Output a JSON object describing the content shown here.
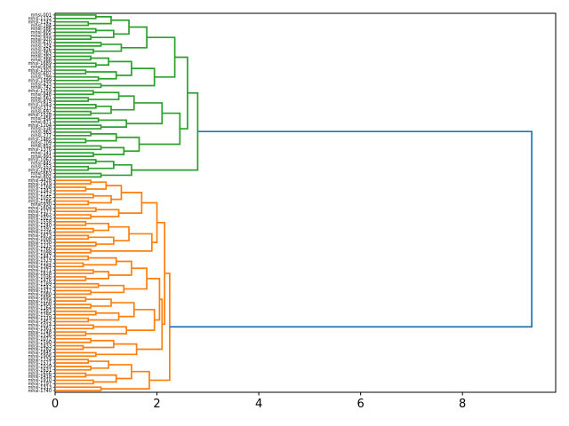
{
  "figure": {
    "background": "#ffffff"
  },
  "chart_data": {
    "type": "dendrogram",
    "orientation": "right",
    "title": "",
    "xlabel": "",
    "ylabel": "",
    "xlim": [
      0,
      9.83
    ],
    "xticks": [
      "0",
      "2",
      "4",
      "6",
      "8"
    ],
    "grid": false,
    "legend": "none",
    "root_height": 9.36,
    "color_threshold": 6.55,
    "colors": {
      "above_threshold": "#1f77b4",
      "cluster_top": "#2ca02c",
      "cluster_bottom": "#ff7f0e",
      "axis": "#000000",
      "label": "#000000"
    },
    "clusters": [
      {
        "name": "top-green",
        "color": "#2ca02c",
        "start": 0,
        "count": 48,
        "root_height": 2.8
      },
      {
        "name": "bottom-orange",
        "color": "#ff7f0e",
        "start": 48,
        "count": 62,
        "root_height": 2.25
      }
    ],
    "leaves": [
      "mhsl-001",
      "mhsl-1132",
      "mhsl-1142",
      "mhsl-184",
      "mhsl-586",
      "mhsl-605",
      "mhsl-655",
      "mhsl-920",
      "mhsl-610",
      "mhsl-324",
      "mhsl-926",
      "mhsl-363",
      "mhsl-383",
      "mhsl-368",
      "mhsl-1689",
      "mhsl-604",
      "mhsl-1302",
      "mhsl-607",
      "mhsl-199",
      "mhsl-1499",
      "mhsl-433",
      "mhsl-742",
      "mhsl-1259",
      "mhsl-948",
      "mhsl-561",
      "mhsl-879",
      "mhsl-1043",
      "mhsl-317",
      "mhsl-692",
      "mhsl-1528",
      "mhsl-456",
      "mhsl-871",
      "mhsl-1204",
      "mhsl-538",
      "mhsl-963",
      "mhsl-277",
      "mhsl-1485",
      "mhsl-709",
      "mhsl-852",
      "mhsl-1376",
      "mhsl-141",
      "mhsl-991",
      "mhsl-1067",
      "mhsl-845",
      "mhsl-553",
      "mhsl-1820",
      "mhsl-663",
      "mhsl-802",
      "mhsl-4428",
      "mhsl-1419",
      "mhsl-1168",
      "mhsl-1343",
      "mhsl-1712",
      "mhsl-1055",
      "mhsl-1286",
      "mhsl-930",
      "mhsl-1604",
      "mhsl-1177",
      "mhsl-1462",
      "mhsl-1023",
      "mhsl-1558",
      "mhsl-1240",
      "mhsl-1391",
      "mhsl-1126",
      "mhsl-1673",
      "mhsl-1008",
      "mhsl-1330",
      "mhsl-1215",
      "mhsl-1760",
      "mhsl-1098",
      "mhsl-1447",
      "mhsl-1519",
      "mhsl-1152",
      "mhsl-1384",
      "mhsl-1271",
      "mhsl-1628",
      "mhsl-1036",
      "mhsl-1476",
      "mhsl-1189",
      "mhsl-1542",
      "mhsl-1317",
      "mhsl-1080",
      "mhsl-1695",
      "mhsl-1228",
      "mhsl-1408",
      "mhsl-1164",
      "mhsl-1583",
      "mhsl-1295",
      "mhsl-1119",
      "mhsl-1452",
      "mhsl-1014",
      "mhsl-1361",
      "mhsl-1248",
      "mhsl-1536",
      "mhsl-1072",
      "mhsl-1590",
      "mhsl-1433",
      "mhsl-1282",
      "mhsl-1645",
      "mhsl-1906",
      "mhsl-1124",
      "mhsl-1571",
      "mhsl-1039",
      "mhsl-1631",
      "mhsl-1656",
      "mhsl-1418",
      "mhsl-1910",
      "mhsl-1197",
      "mhsl-1313",
      "mhsl-1740"
    ],
    "junction_heights": [
      0.8,
      1.1,
      0.65,
      1.45,
      0.8,
      1.15,
      0.7,
      1.8,
      0.9,
      1.3,
      0.75,
      2.35,
      0.7,
      1.05,
      0.8,
      1.5,
      0.6,
      1.2,
      0.85,
      1.95,
      0.9,
      2.6,
      0.75,
      1.25,
      0.65,
      1.55,
      0.8,
      1.1,
      0.7,
      2.1,
      0.85,
      1.4,
      0.9,
      2.45,
      0.7,
      1.2,
      0.6,
      1.65,
      0.9,
      1.35,
      0.75,
      2.8,
      0.8,
      1.15,
      0.65,
      1.5,
      0.9,
      9.36,
      0.7,
      1.0,
      0.6,
      1.3,
      0.75,
      1.1,
      0.65,
      1.7,
      0.8,
      1.25,
      0.7,
      2.0,
      0.6,
      1.05,
      0.75,
      1.45,
      0.65,
      1.15,
      0.8,
      1.9,
      0.7,
      2.15,
      0.65,
      1.2,
      0.55,
      1.5,
      0.75,
      1.05,
      0.6,
      1.8,
      0.85,
      1.35,
      0.7,
      2.05,
      0.6,
      1.1,
      0.7,
      1.55,
      0.8,
      1.25,
      0.65,
      1.95,
      0.75,
      1.4,
      0.6,
      2.1,
      0.7,
      1.15,
      0.55,
      1.6,
      0.8,
      2.25,
      0.65,
      1.05,
      0.7,
      1.5,
      0.6,
      1.2,
      0.75,
      1.85,
      0.9
    ]
  }
}
